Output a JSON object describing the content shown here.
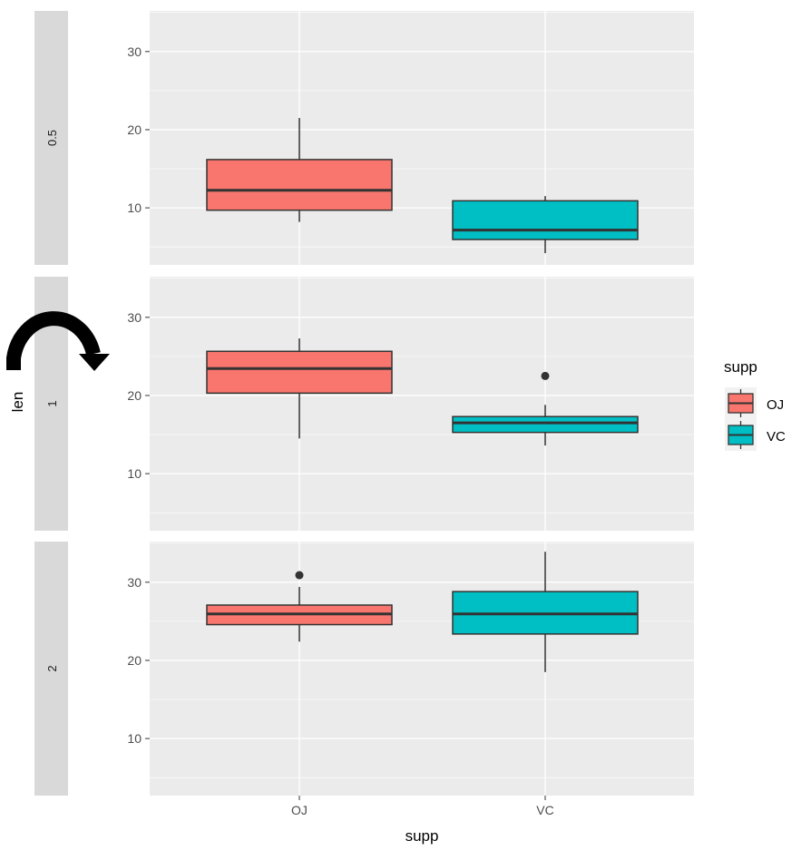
{
  "chart_data": {
    "type": "boxplot",
    "xlabel": "supp",
    "ylabel": "len",
    "categories": [
      "OJ",
      "VC"
    ],
    "facet_strip_position": "left",
    "ylim": [
      2.7,
      35.2
    ],
    "yticks": [
      10,
      20,
      30
    ],
    "grid": true,
    "legend": {
      "title": "supp",
      "position": "right",
      "entries": [
        "OJ",
        "VC"
      ]
    },
    "colors": {
      "OJ": "#F8766D",
      "VC": "#00BFC4"
    },
    "facets": [
      {
        "label": "0.5",
        "boxes": [
          {
            "category": "OJ",
            "lower_whisker": 8.2,
            "q1": 9.7,
            "median": 12.25,
            "q3": 16.175,
            "upper_whisker": 21.5,
            "outliers": []
          },
          {
            "category": "VC",
            "lower_whisker": 4.2,
            "q1": 5.95,
            "median": 7.15,
            "q3": 10.9,
            "upper_whisker": 11.5,
            "outliers": []
          }
        ]
      },
      {
        "label": "1",
        "boxes": [
          {
            "category": "OJ",
            "lower_whisker": 14.5,
            "q1": 20.3,
            "median": 23.45,
            "q3": 25.65,
            "upper_whisker": 27.3,
            "outliers": []
          },
          {
            "category": "VC",
            "lower_whisker": 13.6,
            "q1": 15.275,
            "median": 16.5,
            "q3": 17.3,
            "upper_whisker": 18.8,
            "outliers": [
              22.5
            ]
          }
        ]
      },
      {
        "label": "2",
        "boxes": [
          {
            "category": "OJ",
            "lower_whisker": 22.4,
            "q1": 24.575,
            "median": 25.95,
            "q3": 27.075,
            "upper_whisker": 29.4,
            "outliers": [
              30.9
            ]
          },
          {
            "category": "VC",
            "lower_whisker": 18.5,
            "q1": 23.375,
            "median": 25.95,
            "q3": 28.8,
            "upper_whisker": 33.9,
            "outliers": []
          }
        ]
      }
    ]
  },
  "annotation": {
    "icon": "curved-arrow-icon"
  }
}
